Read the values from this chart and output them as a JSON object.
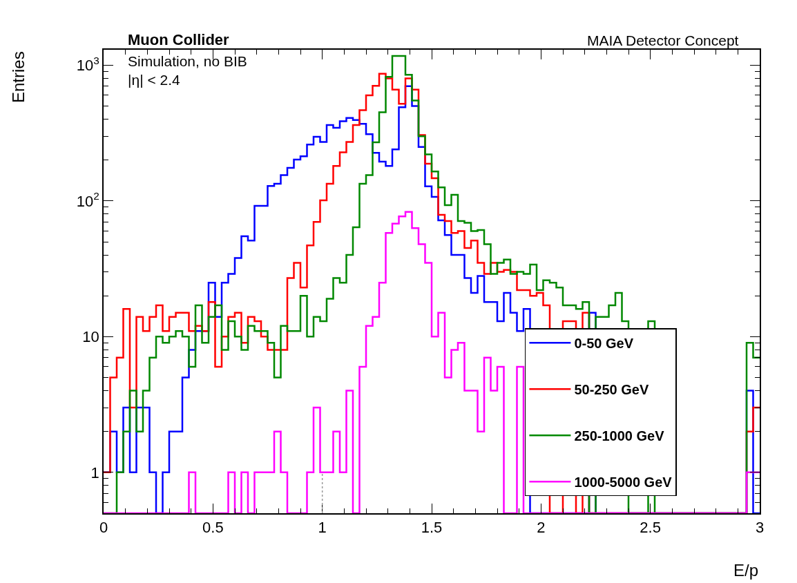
{
  "chart_data": {
    "type": "histogram",
    "title": "Muon Collider",
    "xlabel": "E/p",
    "ylabel": "Entries",
    "annotations": [
      "MAIA Detector Concept",
      "Simulation, no BIB",
      "|η| < 2.4"
    ],
    "bins": [
      0,
      0.03,
      0.06,
      0.09,
      0.12,
      0.15,
      0.18,
      0.21,
      0.24,
      0.27,
      0.3,
      0.33,
      0.36,
      0.39,
      0.42,
      0.45,
      0.48,
      0.51,
      0.54,
      0.57,
      0.6,
      0.63,
      0.66,
      0.69,
      0.72,
      0.75,
      0.78,
      0.81,
      0.84,
      0.87,
      0.9,
      0.93,
      0.96,
      0.99,
      1.02,
      1.05,
      1.08,
      1.11,
      1.14,
      1.17,
      1.2,
      1.23,
      1.26,
      1.29,
      1.32,
      1.35,
      1.38,
      1.41,
      1.44,
      1.47,
      1.5,
      1.53,
      1.56,
      1.59,
      1.62,
      1.65,
      1.68,
      1.71,
      1.74,
      1.77,
      1.8,
      1.83,
      1.86,
      1.89,
      1.92,
      1.95,
      1.98,
      2.01,
      2.04,
      2.07,
      2.1,
      2.13,
      2.16,
      2.19,
      2.22,
      2.25,
      2.28,
      2.31,
      2.34,
      2.37,
      2.4,
      2.43,
      2.46,
      2.49,
      2.52,
      2.55,
      2.58,
      2.61,
      2.64,
      2.67,
      2.7,
      2.73,
      2.76,
      2.79,
      2.82,
      2.85,
      2.88,
      2.91,
      2.94,
      2.97,
      3
    ],
    "series": [
      {
        "name": "0-50 GeV",
        "color": "#0000ff",
        "values": [
          1,
          2,
          1,
          3,
          1,
          3,
          3,
          1,
          null,
          1,
          2,
          2,
          5,
          8,
          11,
          11,
          25,
          14,
          25,
          29,
          38,
          55,
          51,
          92,
          92,
          129,
          134,
          155,
          175,
          202,
          213,
          260,
          297,
          272,
          362,
          346,
          386,
          409,
          394,
          370,
          310,
          226,
          195,
          181,
          240,
          490,
          700,
          500,
          250,
          128,
          107,
          72,
          56,
          40,
          40,
          27,
          21,
          28,
          18,
          18,
          13,
          21,
          15,
          11,
          16,
          null,
          null,
          null,
          null,
          null,
          null,
          null,
          null,
          null,
          15,
          null,
          null,
          null,
          null,
          null,
          null,
          null,
          null,
          null,
          null,
          null,
          null,
          null,
          null,
          null,
          null,
          null,
          null,
          null,
          null,
          null,
          null,
          null,
          4,
          null
        ]
      },
      {
        "name": "50-250 GeV",
        "color": "#ff0000",
        "values": [
          1,
          5,
          7,
          16,
          3,
          14,
          11,
          14,
          17,
          11,
          14,
          15,
          15,
          11,
          12,
          11,
          18,
          6,
          10,
          14,
          15,
          9,
          14,
          13,
          10,
          8,
          8,
          8,
          27,
          35,
          23,
          47,
          70,
          101,
          134,
          181,
          228,
          272,
          362,
          466,
          600,
          705,
          865,
          800,
          660,
          520,
          800,
          660,
          306,
          188,
          147,
          79,
          71,
          58,
          60,
          45,
          51,
          35,
          29,
          35,
          30,
          31,
          30,
          22,
          22,
          20,
          21,
          17,
          null,
          null,
          13,
          13,
          null,
          15,
          null,
          null,
          null,
          null,
          null,
          null,
          null,
          null,
          null,
          null,
          null,
          null,
          null,
          null,
          null,
          null,
          null,
          null,
          null,
          null,
          null,
          null,
          null,
          null,
          2,
          3
        ]
      },
      {
        "name": "250-1000 GeV",
        "color": "#008800",
        "values": [
          null,
          null,
          1,
          2,
          4,
          2,
          4,
          7,
          10,
          9,
          10,
          11,
          10,
          6,
          17,
          9,
          14,
          17,
          8,
          13,
          10,
          8,
          12,
          11,
          11,
          9,
          5,
          12,
          11,
          11,
          20,
          10,
          14,
          13,
          19,
          27,
          25,
          40,
          64,
          134,
          155,
          270,
          450,
          820,
          1170,
          1170,
          850,
          550,
          300,
          220,
          165,
          126,
          93,
          111,
          71,
          69,
          60,
          61,
          48,
          29,
          35,
          37,
          29,
          30,
          29,
          34,
          22,
          26,
          25,
          23,
          17,
          17,
          16,
          18,
          null,
          14,
          14,
          17,
          21,
          13,
          null,
          null,
          null,
          13,
          null,
          null,
          null,
          null,
          null,
          null,
          null,
          null,
          null,
          null,
          null,
          null,
          null,
          null,
          9,
          7
        ]
      },
      {
        "name": "1000-5000 GeV",
        "color": "#ff00ff",
        "values": [
          null,
          null,
          null,
          null,
          null,
          null,
          null,
          null,
          null,
          null,
          null,
          null,
          null,
          1,
          null,
          null,
          null,
          null,
          null,
          1,
          null,
          1,
          null,
          1,
          1,
          1,
          2,
          1,
          null,
          null,
          null,
          1,
          3,
          1,
          1,
          2,
          1,
          4,
          null,
          6,
          12,
          14,
          25,
          58,
          68,
          77,
          83,
          63,
          48,
          35,
          10,
          15,
          5,
          8,
          9,
          4,
          4,
          2,
          7,
          4,
          6,
          null,
          null,
          6,
          null,
          null,
          null,
          null,
          null,
          null,
          null,
          null,
          null,
          null,
          null,
          null,
          null,
          null,
          null,
          null,
          null,
          null,
          null,
          null,
          null,
          null,
          null,
          null,
          null,
          null,
          null,
          null,
          null,
          null,
          null,
          null,
          null,
          null,
          1,
          1
        ]
      }
    ],
    "xlim": [
      0,
      3
    ],
    "xticks": [
      0,
      0.5,
      1,
      1.5,
      2,
      2.5,
      3
    ],
    "ylim": [
      0.5,
      1300
    ],
    "yticks": [
      1,
      10,
      {
        "value": 100,
        "label": "10$^{2}$"
      },
      {
        "value": 1000,
        "label": "10$^{3}$"
      }
    ],
    "log": "y",
    "ref_lines": [
      {
        "axis": "x",
        "value": 1,
        "color": "#999999",
        "line_style": "dotted"
      }
    ],
    "legend": "bottom right"
  }
}
